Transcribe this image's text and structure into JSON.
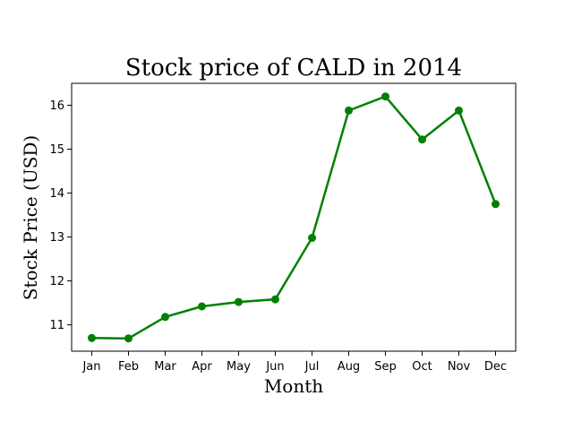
{
  "chart_data": {
    "type": "line",
    "title": "Stock price of CALD in 2014",
    "xlabel": "Month",
    "ylabel": "Stock Price (USD)",
    "categories": [
      "Jan",
      "Feb",
      "Mar",
      "Apr",
      "May",
      "Jun",
      "Jul",
      "Aug",
      "Sep",
      "Oct",
      "Nov",
      "Dec"
    ],
    "series": [
      {
        "values": [
          10.7,
          10.69,
          11.18,
          11.42,
          11.52,
          11.58,
          12.98,
          15.88,
          16.2,
          15.22,
          15.88,
          13.75
        ]
      }
    ],
    "yticks": [
      11,
      12,
      13,
      14,
      15,
      16
    ],
    "ylim": [
      10.4,
      16.5
    ],
    "grid": false,
    "color": "#008000"
  }
}
